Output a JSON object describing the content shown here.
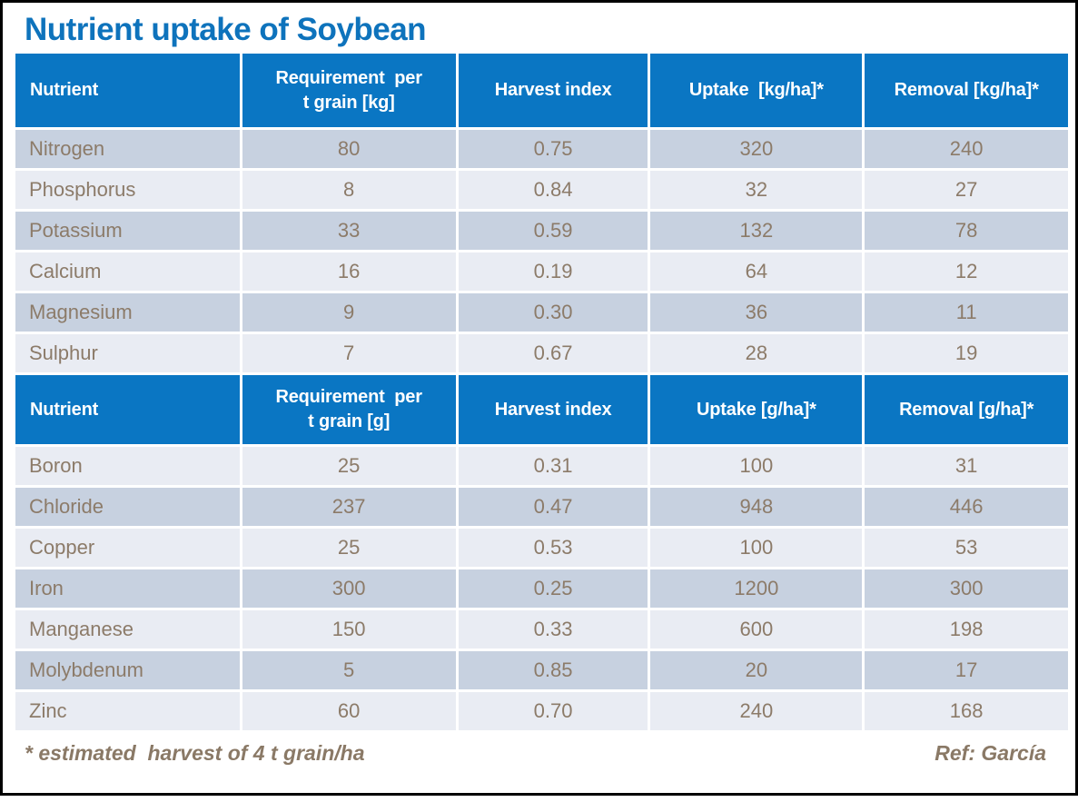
{
  "title": "Nutrient uptake of Soybean",
  "table": {
    "sections": [
      {
        "name": "macronutrients-kg",
        "header": [
          "Nutrient",
          "Requirement  per\nt grain [kg]",
          "Harvest index",
          "Uptake  [kg/ha]*",
          "Removal [kg/ha]*"
        ],
        "rows": [
          [
            "Nitrogen",
            "80",
            "0.75",
            "320",
            "240"
          ],
          [
            "Phosphorus",
            "8",
            "0.84",
            "32",
            "27"
          ],
          [
            "Potassium",
            "33",
            "0.59",
            "132",
            "78"
          ],
          [
            "Calcium",
            "16",
            "0.19",
            "64",
            "12"
          ],
          [
            "Magnesium",
            "9",
            "0.30",
            "36",
            "11"
          ],
          [
            "Sulphur",
            "7",
            "0.67",
            "28",
            "19"
          ]
        ]
      },
      {
        "name": "micronutrients-g",
        "header": [
          "Nutrient",
          "Requirement  per\nt grain [g]",
          "Harvest index",
          "Uptake [g/ha]*",
          "Removal [g/ha]*"
        ],
        "rows": [
          [
            "Boron",
            "25",
            "0.31",
            "100",
            "31"
          ],
          [
            "Chloride",
            "237",
            "0.47",
            "948",
            "446"
          ],
          [
            "Copper",
            "25",
            "0.53",
            "100",
            "53"
          ],
          [
            "Iron",
            "300",
            "0.25",
            "1200",
            "300"
          ],
          [
            "Manganese",
            "150",
            "0.33",
            "600",
            "198"
          ],
          [
            "Molybdenum",
            "5",
            "0.85",
            "20",
            "17"
          ],
          [
            "Zinc",
            "60",
            "0.70",
            "240",
            "168"
          ]
        ]
      }
    ]
  },
  "footer": {
    "note": "* estimated  harvest of 4 t grain/ha",
    "reference": "Ref: García"
  },
  "colors": {
    "title_blue": "#0e73bc",
    "header_blue": "#0a76c3",
    "row_dark": "#c7d1e0",
    "row_light": "#e9ecf3",
    "cell_text": "#8c7b69",
    "footer_text": "#8a7966",
    "frame_border": "#000000"
  }
}
